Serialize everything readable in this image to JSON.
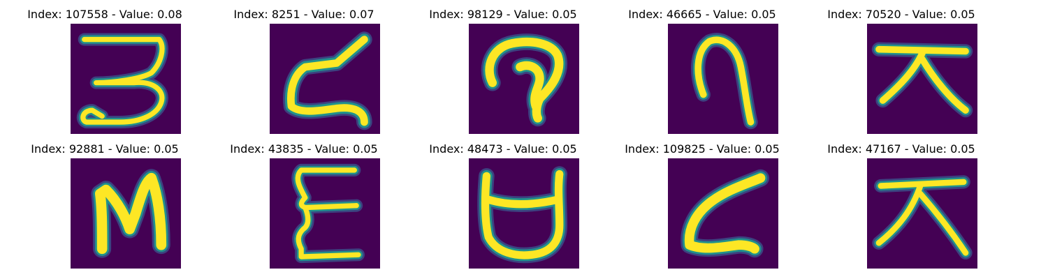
{
  "colors": {
    "background": "#440154",
    "stroke_core": "#fde725",
    "stroke_edge": "#21918c",
    "stroke_halo": "#3b528b"
  },
  "panels": [
    {
      "title": "Index: 107558 - Value: 0.08",
      "glyph": "3-shaped character",
      "value": 0.08
    },
    {
      "title": "Index: 8251 - Value: 0.07",
      "glyph": "zigzag character",
      "value": 0.07
    },
    {
      "title": "Index: 98129 - Value: 0.05",
      "glyph": "curled character",
      "value": 0.05
    },
    {
      "title": "Index: 46665 - Value: 0.05",
      "glyph": "arch character",
      "value": 0.05
    },
    {
      "title": "Index: 70520 - Value: 0.05",
      "glyph": "cross-legs character",
      "value": 0.05
    },
    {
      "title": "Index: 92881 - Value: 0.05",
      "glyph": "N-shaped character",
      "value": 0.05
    },
    {
      "title": "Index: 43835 - Value: 0.05",
      "glyph": "E-shaped character",
      "value": 0.05
    },
    {
      "title": "Index: 48473 - Value: 0.05",
      "glyph": "cup character",
      "value": 0.05
    },
    {
      "title": "Index: 109825 - Value: 0.05",
      "glyph": "Z-shaped character",
      "value": 0.05
    },
    {
      "title": "Index: 47167 - Value: 0.05",
      "glyph": "cross-legs character",
      "value": 0.05
    }
  ]
}
